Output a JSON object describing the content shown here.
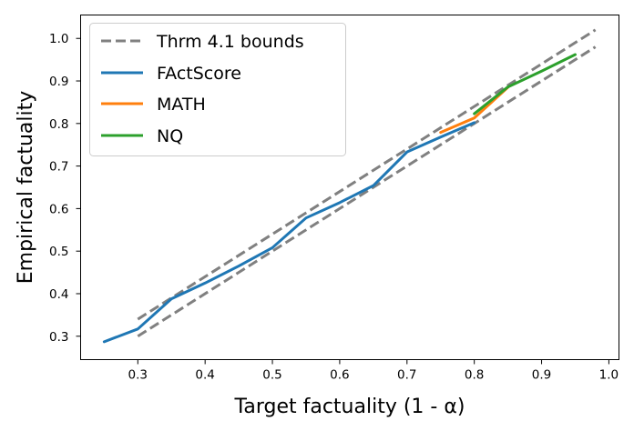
{
  "chart_data": {
    "type": "line",
    "xlabel": "Target factuality (1 - α)",
    "ylabel": "Empirical factuality",
    "xlim": [
      0.215,
      1.015
    ],
    "ylim": [
      0.245,
      1.055
    ],
    "xticks": [
      "0.3",
      "0.4",
      "0.5",
      "0.6",
      "0.7",
      "0.8",
      "0.9",
      "1.0"
    ],
    "yticks": [
      "0.3",
      "0.4",
      "0.5",
      "0.6",
      "0.7",
      "0.8",
      "0.9",
      "1.0"
    ],
    "grid": false,
    "legend_position": "top-left",
    "series": [
      {
        "name": "Thrm 4.1 bounds",
        "color": "#808080",
        "style": "dashed",
        "lines": [
          {
            "x": [
              0.3,
              0.98
            ],
            "y": [
              0.34,
              1.02
            ]
          },
          {
            "x": [
              0.3,
              0.98
            ],
            "y": [
              0.3,
              0.98
            ]
          }
        ]
      },
      {
        "name": "FActScore",
        "color": "#1f77b4",
        "style": "solid",
        "x": [
          0.25,
          0.3,
          0.35,
          0.4,
          0.45,
          0.5,
          0.55,
          0.6,
          0.65,
          0.7,
          0.75,
          0.8
        ],
        "y": [
          0.287,
          0.317,
          0.388,
          0.425,
          0.465,
          0.508,
          0.578,
          0.614,
          0.654,
          0.733,
          0.768,
          0.802
        ]
      },
      {
        "name": "MATH",
        "color": "#ff7f0e",
        "style": "solid",
        "x": [
          0.75,
          0.8,
          0.85
        ],
        "y": [
          0.779,
          0.813,
          0.885
        ]
      },
      {
        "name": "NQ",
        "color": "#2ca02c",
        "style": "solid",
        "x": [
          0.8,
          0.85,
          0.9,
          0.95
        ],
        "y": [
          0.823,
          0.886,
          0.923,
          0.962
        ]
      }
    ]
  }
}
